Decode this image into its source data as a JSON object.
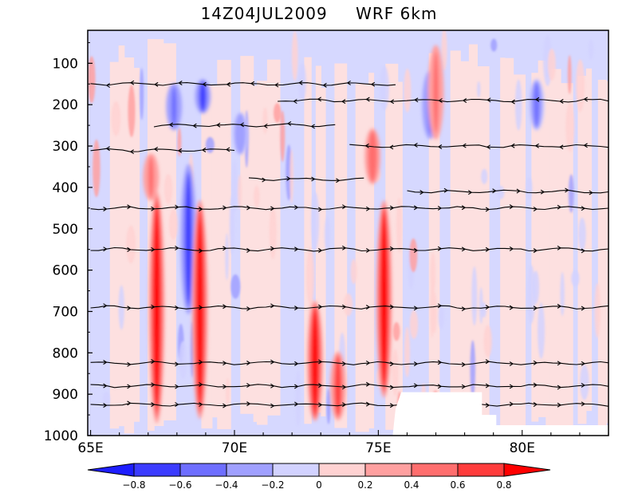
{
  "header": {
    "time_label": "14Z04JUL2009",
    "model_label": "WRF  6km"
  },
  "chart_data": {
    "type": "heatmap",
    "title": "14Z04JUL2009    WRF  6km",
    "x_axis": {
      "range": [
        64.9,
        83.0
      ],
      "ticks": [
        65,
        70,
        75,
        80
      ],
      "tick_labels": [
        "65E",
        "70E",
        "75E",
        "80E"
      ]
    },
    "y_axis": {
      "range": [
        1000,
        40
      ],
      "reversed": true,
      "ticks": [
        100,
        200,
        300,
        400,
        500,
        600,
        700,
        800,
        900,
        1000
      ],
      "tick_labels": [
        "100",
        "200",
        "300",
        "400",
        "500",
        "600",
        "700",
        "800",
        "900",
        "1000"
      ]
    },
    "colorbar": {
      "levels": [
        -0.8,
        -0.6,
        -0.4,
        -0.2,
        0,
        0.2,
        0.4,
        0.6,
        0.8
      ],
      "tick_labels": [
        "−0.8",
        "−0.6",
        "−0.4",
        "−0.2",
        "0",
        "0.2",
        "0.4",
        "0.6",
        "0.8"
      ],
      "colors": [
        "#1e1eff",
        "#3c3cff",
        "#6e6eff",
        "#a0a0ff",
        "#d2d2ff",
        "#ffd2d2",
        "#ffa0a0",
        "#ff6e6e",
        "#ff3c3c",
        "#ff0000"
      ],
      "background_negative": "#d6d8ff",
      "background_positive": "#fde0e0"
    },
    "strong_updrafts": [
      {
        "lon": 67.3,
        "p_top": 420,
        "p_bottom": 960,
        "value": 1.0
      },
      {
        "lon": 68.8,
        "p_top": 440,
        "p_bottom": 950,
        "value": 0.9
      },
      {
        "lon": 72.8,
        "p_top": 680,
        "p_bottom": 960,
        "value": 0.9
      },
      {
        "lon": 73.6,
        "p_top": 800,
        "p_bottom": 960,
        "value": 0.7
      },
      {
        "lon": 75.2,
        "p_top": 440,
        "p_bottom": 900,
        "value": 1.0
      },
      {
        "lon": 74.8,
        "p_top": 260,
        "p_bottom": 390,
        "value": 0.6
      },
      {
        "lon": 67.1,
        "p_top": 320,
        "p_bottom": 430,
        "value": 0.5
      },
      {
        "lon": 77.0,
        "p_top": 60,
        "p_bottom": 280,
        "value": 0.5
      }
    ],
    "strong_downdrafts": [
      {
        "lon": 68.4,
        "p_top": 350,
        "p_bottom": 700,
        "value": -0.7
      },
      {
        "lon": 67.9,
        "p_top": 150,
        "p_bottom": 260,
        "value": -0.5
      },
      {
        "lon": 68.9,
        "p_top": 140,
        "p_bottom": 220,
        "value": -0.6
      },
      {
        "lon": 76.8,
        "p_top": 120,
        "p_bottom": 280,
        "value": -0.5
      },
      {
        "lon": 70.2,
        "p_top": 220,
        "p_bottom": 320,
        "value": -0.3
      },
      {
        "lon": 80.5,
        "p_top": 140,
        "p_bottom": 260,
        "value": -0.4
      }
    ],
    "terrain": [
      {
        "lon": 73.9,
        "p": 1000
      },
      {
        "lon": 75.5,
        "p": 1000
      },
      {
        "lon": 75.6,
        "p": 935
      },
      {
        "lon": 75.8,
        "p": 895
      },
      {
        "lon": 78.6,
        "p": 895
      },
      {
        "lon": 78.6,
        "p": 950
      },
      {
        "lon": 79.1,
        "p": 950
      },
      {
        "lon": 79.1,
        "p": 975
      },
      {
        "lon": 83.0,
        "p": 975
      },
      {
        "lon": 83.0,
        "p": 1000
      }
    ],
    "streamlines": [
      {
        "p": 150,
        "lon_start": 65.0,
        "lon_end": 75.6,
        "direction": "west"
      },
      {
        "p": 190,
        "lon_start": 71.5,
        "lon_end": 83.0,
        "direction": "west"
      },
      {
        "p": 250,
        "lon_start": 67.2,
        "lon_end": 73.5,
        "direction": "west"
      },
      {
        "p": 310,
        "lon_start": 65.0,
        "lon_end": 70.0,
        "direction": "west"
      },
      {
        "p": 300,
        "lon_start": 74.0,
        "lon_end": 83.0,
        "direction": "west"
      },
      {
        "p": 380,
        "lon_start": 70.5,
        "lon_end": 74.5,
        "direction": "east"
      },
      {
        "p": 410,
        "lon_start": 76.0,
        "lon_end": 83.0,
        "direction": "east"
      },
      {
        "p": 450,
        "lon_start": 65.0,
        "lon_end": 83.0,
        "direction": "east"
      },
      {
        "p": 550,
        "lon_start": 65.0,
        "lon_end": 83.0,
        "direction": "east"
      },
      {
        "p": 690,
        "lon_start": 65.0,
        "lon_end": 83.0,
        "direction": "east"
      },
      {
        "p": 825,
        "lon_start": 65.0,
        "lon_end": 83.0,
        "direction": "east"
      },
      {
        "p": 880,
        "lon_start": 65.0,
        "lon_end": 83.0,
        "direction": "east"
      },
      {
        "p": 925,
        "lon_start": 65.0,
        "lon_end": 83.0,
        "direction": "east"
      }
    ]
  }
}
